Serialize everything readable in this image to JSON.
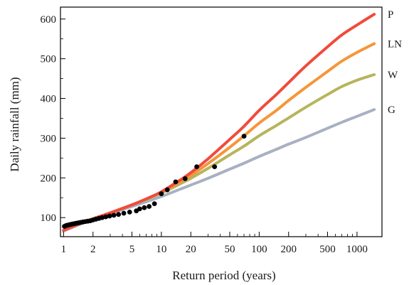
{
  "chart_data": {
    "type": "line",
    "xlabel": "Return period (years)",
    "ylabel": "Daily rainfall (mm)",
    "xscale": "log",
    "xlim": [
      0.93,
      1800
    ],
    "ylim": [
      52,
      630
    ],
    "grid": false,
    "colors": {
      "P": "#f04b3c",
      "LN": "#f5963a",
      "W": "#b7b45c",
      "G": "#a8b0c2",
      "points": "#000000",
      "axis": "#000000"
    },
    "x_ticks": [
      {
        "value": 1,
        "label": "1"
      },
      {
        "value": 2,
        "label": "2"
      },
      {
        "value": 5,
        "label": "5"
      },
      {
        "value": 10,
        "label": "10"
      },
      {
        "value": 20,
        "label": "20"
      },
      {
        "value": 50,
        "label": "50"
      },
      {
        "value": 100,
        "label": "100"
      },
      {
        "value": 200,
        "label": "200"
      },
      {
        "value": 500,
        "label": "500"
      },
      {
        "value": 1000,
        "label": "1000"
      }
    ],
    "y_ticks": [
      {
        "value": 100,
        "label": "100"
      },
      {
        "value": 200,
        "label": "200"
      },
      {
        "value": 300,
        "label": "300"
      },
      {
        "value": 400,
        "label": "400"
      },
      {
        "value": 500,
        "label": "500"
      },
      {
        "value": 600,
        "label": "600"
      }
    ],
    "series": [
      {
        "name": "P",
        "color": "#f04b3c",
        "x": [
          1,
          1.5,
          2,
          3,
          5,
          7,
          10,
          15,
          20,
          30,
          50,
          70,
          100,
          150,
          200,
          300,
          500,
          700,
          1000,
          1500
        ],
        "y": [
          68,
          86,
          97,
          112,
          132,
          147,
          165,
          192,
          213,
          248,
          297,
          330,
          370,
          410,
          440,
          482,
          530,
          560,
          585,
          612
        ]
      },
      {
        "name": "LN",
        "color": "#f5963a",
        "x": [
          1,
          1.5,
          2,
          3,
          5,
          7,
          10,
          15,
          20,
          30,
          50,
          70,
          100,
          150,
          200,
          300,
          500,
          700,
          1000,
          1500
        ],
        "y": [
          68,
          86,
          97,
          112,
          132,
          147,
          164,
          188,
          206,
          236,
          277,
          306,
          338,
          370,
          395,
          428,
          468,
          494,
          516,
          538
        ]
      },
      {
        "name": "W",
        "color": "#b7b45c",
        "x": [
          1,
          1.5,
          2,
          3,
          5,
          7,
          10,
          15,
          20,
          30,
          50,
          70,
          100,
          150,
          200,
          300,
          500,
          700,
          1000,
          1500
        ],
        "y": [
          68,
          86,
          97,
          112,
          132,
          146,
          162,
          183,
          199,
          224,
          258,
          280,
          306,
          332,
          351,
          378,
          410,
          430,
          446,
          460
        ]
      },
      {
        "name": "G",
        "color": "#a8b0c2",
        "x": [
          1,
          1.5,
          2,
          3,
          5,
          7,
          10,
          15,
          20,
          30,
          50,
          70,
          100,
          150,
          200,
          300,
          500,
          700,
          1000,
          1500
        ],
        "y": [
          66,
          84,
          95,
          110,
          128,
          140,
          153,
          170,
          182,
          199,
          222,
          237,
          254,
          272,
          285,
          302,
          325,
          340,
          355,
          372
        ]
      }
    ],
    "points": {
      "x": [
        1.02,
        1.06,
        1.1,
        1.14,
        1.19,
        1.24,
        1.3,
        1.36,
        1.43,
        1.5,
        1.58,
        1.67,
        1.77,
        1.88,
        2.0,
        2.14,
        2.3,
        2.48,
        2.7,
        2.96,
        3.27,
        3.65,
        4.13,
        4.74,
        5.55,
        6.0,
        6.7,
        7.5,
        8.5,
        10.0,
        11.5,
        14.0,
        17.5,
        23.0,
        35.0,
        70.0
      ],
      "y": [
        78,
        80,
        81,
        82,
        83,
        84,
        85,
        86,
        87,
        88,
        89,
        90,
        91,
        92,
        94,
        96,
        98,
        100,
        102,
        104,
        106,
        108,
        111,
        114,
        117,
        122,
        125,
        128,
        135,
        160,
        170,
        190,
        198,
        228,
        228,
        305
      ]
    },
    "curve_labels": [
      {
        "series": "P",
        "label": "P"
      },
      {
        "series": "LN",
        "label": "LN"
      },
      {
        "series": "W",
        "label": "W"
      },
      {
        "series": "G",
        "label": "G"
      }
    ]
  }
}
